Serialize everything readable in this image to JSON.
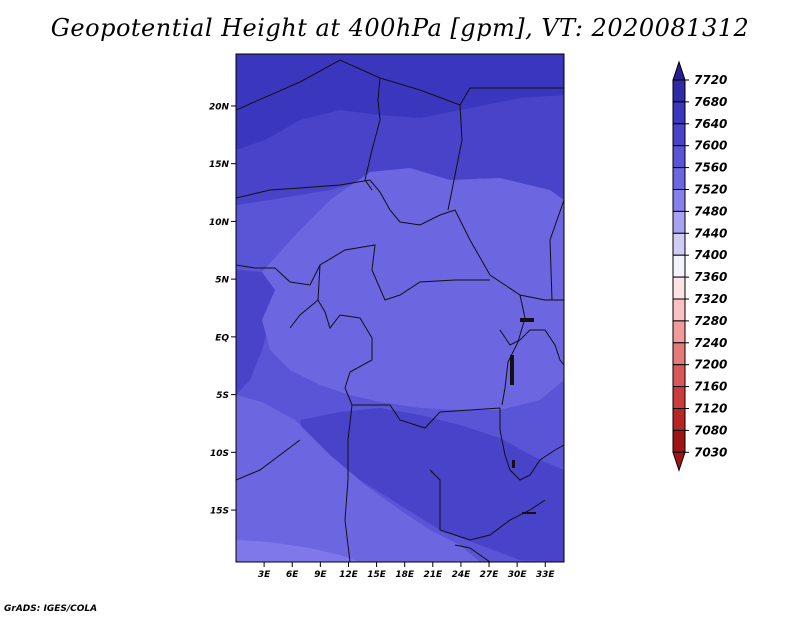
{
  "title": "Geopotential Height at 400hPa [gpm], VT: 2020081312",
  "credit": "GrADS: IGES/COLA",
  "map": {
    "lat_labels": [
      "20N",
      "15N",
      "10N",
      "5N",
      "EQ",
      "5S",
      "10S",
      "15S"
    ],
    "lat_values": [
      20,
      15,
      10,
      5,
      0,
      -5,
      -10,
      -15
    ],
    "lon_labels": [
      "3E",
      "6E",
      "9E",
      "12E",
      "15E",
      "18E",
      "21E",
      "24E",
      "27E",
      "30E",
      "33E"
    ],
    "lon_values": [
      3,
      6,
      9,
      12,
      15,
      18,
      21,
      24,
      27,
      30,
      33
    ],
    "lat_range": [
      -19.5,
      24.5
    ],
    "lon_range": [
      0,
      35
    ]
  },
  "colorbar": {
    "labels": [
      "7720",
      "7680",
      "7640",
      "7600",
      "7560",
      "7520",
      "7480",
      "7440",
      "7400",
      "7360",
      "7320",
      "7280",
      "7240",
      "7200",
      "7160",
      "7120",
      "7080",
      "7030"
    ],
    "colors": [
      "#2a1d8f",
      "#2f2ba5",
      "#3a36bd",
      "#4843c8",
      "#5a55d6",
      "#6c66e0",
      "#8580ea",
      "#a7a3f2",
      "#cfcdf8",
      "#f3f3ff",
      "#fde3e3",
      "#f9c1c1",
      "#f19b9b",
      "#e57a7a",
      "#d95858",
      "#cc3c3c",
      "#b82525",
      "#9e1515"
    ]
  },
  "field": {
    "colors": {
      "7680": "#3a36bd",
      "7640": "#4843c8",
      "7600": "#5a55d6",
      "7560": "#6c66e0",
      "7520": "#7e78ea",
      "border": "#111111"
    }
  }
}
